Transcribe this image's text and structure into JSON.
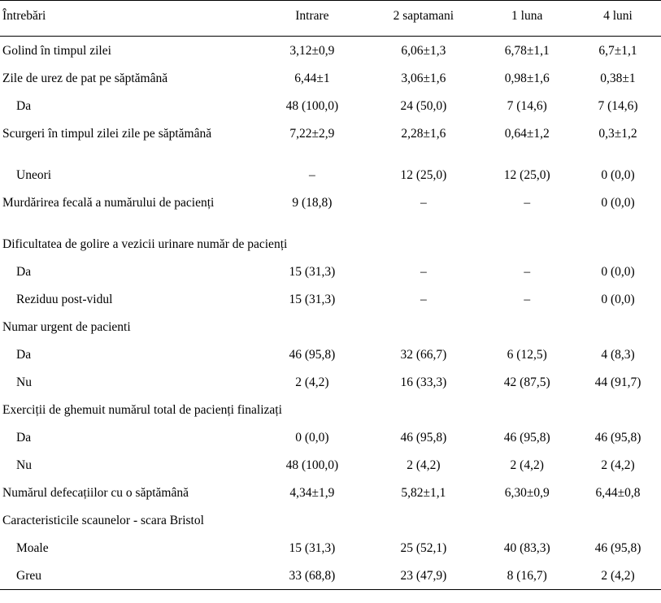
{
  "table": {
    "headers": [
      "Întrebări",
      "Intrare",
      "2 saptamani",
      "1 luna",
      "4 luni"
    ],
    "rows": [
      {
        "label": "Golind în timpul zilei",
        "v": [
          "3,12±0,9",
          "6,06±1,3",
          "6,78±1,1",
          "6,7±1,1"
        ]
      },
      {
        "label": "Zile de urez de pat pe săptămână",
        "v": [
          "6,44±1",
          "3,06±1,6",
          "0,98±1,6",
          "0,38±1"
        ]
      },
      {
        "label": "Da",
        "v": [
          "48 (100,0)",
          "24 (50,0)",
          "7 (14,6)",
          "7 (14,6)"
        ]
      },
      {
        "label": "Scurgeri în timpul zilei zile pe săptămână",
        "v": [
          "7,22±2,9",
          "2,28±1,6",
          "0,64±1,2",
          "0,3±1,2"
        ]
      },
      {
        "label": "Uneori",
        "v": [
          "–",
          "12 (25,0)",
          "12 (25,0)",
          "0 (0,0)"
        ]
      },
      {
        "label": "Murdărirea fecală a numărului de pacienți",
        "v": [
          "9 (18,8)",
          "–",
          "–",
          "0 (0,0)"
        ]
      },
      {
        "label": "Dificultatea de golire a vezicii urinare număr de pacienți",
        "v": [
          "",
          "",
          "",
          ""
        ]
      },
      {
        "label": "Da",
        "v": [
          "15 (31,3)",
          "–",
          "–",
          "0 (0,0)"
        ]
      },
      {
        "label": "Reziduu post-vidul",
        "v": [
          "15 (31,3)",
          "–",
          "–",
          "0 (0,0)"
        ]
      },
      {
        "label": "Numar urgent de pacienti",
        "v": [
          "",
          "",
          "",
          ""
        ]
      },
      {
        "label": "Da",
        "v": [
          "46 (95,8)",
          "32 (66,7)",
          "6 (12,5)",
          "4 (8,3)"
        ]
      },
      {
        "label": "Nu",
        "v": [
          "2 (4,2)",
          "16 (33,3)",
          "42 (87,5)",
          "44 (91,7)"
        ]
      },
      {
        "label": "Exerciții de ghemuit numărul total de pacienți finalizați",
        "v": [
          "",
          "",
          "",
          ""
        ]
      },
      {
        "label": "Da",
        "v": [
          "0 (0,0)",
          "46 (95,8)",
          "46 (95,8)",
          "46 (95,8)"
        ]
      },
      {
        "label": "Nu",
        "v": [
          "48 (100,0)",
          "2 (4,2)",
          "2 (4,2)",
          "2 (4,2)"
        ]
      },
      {
        "label": "Numărul defecațiilor cu o săptămână",
        "v": [
          "4,34±1,9",
          "5,82±1,1",
          "6,30±0,9",
          "6,44±0,8"
        ]
      },
      {
        "label": "Caracteristicile scaunelor - scara Bristol",
        "v": [
          "",
          "",
          "",
          ""
        ]
      },
      {
        "label": "Moale",
        "v": [
          "15 (31,3)",
          "25 (52,1)",
          "40 (83,3)",
          "46 (95,8)"
        ]
      },
      {
        "label": "Greu",
        "v": [
          "33 (68,8)",
          "23 (47,9)",
          "8 (16,7)",
          "2 (4,2)"
        ]
      }
    ]
  }
}
